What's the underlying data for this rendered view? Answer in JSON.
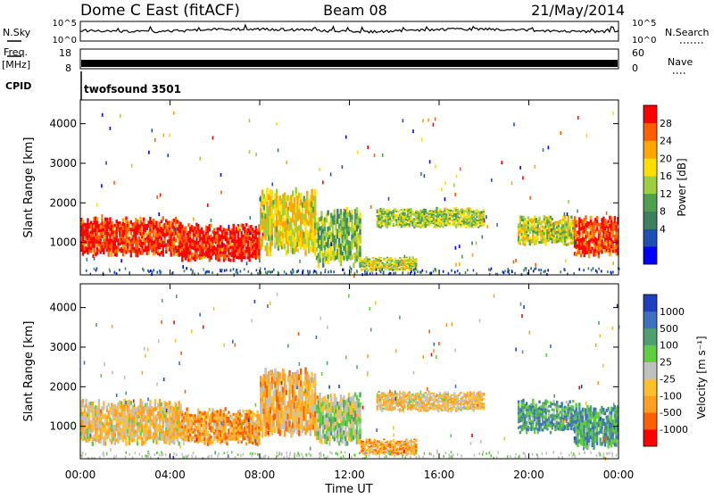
{
  "header": {
    "station": "Dome C East (fitACF)",
    "beam": "Beam 08",
    "date": "21/May/2014"
  },
  "strips": {
    "nsky_label": "N.Sky",
    "nsky_ticks": [
      "10^5",
      "10^0"
    ],
    "nsearch_label": "N.Search",
    "nsearch_ticks": [
      "10^5",
      "10^0"
    ],
    "freq_label_top": "Freq.",
    "freq_label_bottom": "[MHz]",
    "freq_ticks": [
      "18",
      "8"
    ],
    "nave_label": "Nave",
    "nave_ticks": [
      "60",
      "0"
    ],
    "cpid_label": "CPID",
    "cpid_text": "twofsound 3501"
  },
  "colors": {
    "frame": "#000000",
    "noise_trace": "#000000"
  },
  "chart_data": [
    {
      "type": "heatmap",
      "panel": "power",
      "xlabel": "Time UT",
      "ylabel": "Slant Range [km]",
      "xlim": [
        "00:00",
        "24:00"
      ],
      "x_ticks": [
        "00:00",
        "04:00",
        "08:00",
        "12:00",
        "16:00",
        "20:00",
        "00:00"
      ],
      "ylim": [
        180,
        4600
      ],
      "y_ticks": [
        1000,
        2000,
        3000,
        4000
      ],
      "colorbar": {
        "label": "Power [dB]",
        "ticks": [
          "28",
          "24",
          "20",
          "16",
          "12",
          "8",
          "4"
        ],
        "bins": [
          "#0000ff",
          "#1f4fb0",
          "#3f7f5f",
          "#4f9f4f",
          "#9fcf3f",
          "#ffdf00",
          "#ffa500",
          "#ff5f00",
          "#ff0000"
        ]
      },
      "regions": [
        {
          "t0": 0.0,
          "t1": 4.5,
          "r0": 620,
          "r1": 1660,
          "level": 0.92
        },
        {
          "t0": 4.5,
          "t1": 8.0,
          "r0": 500,
          "r1": 1500,
          "level": 0.94
        },
        {
          "t0": 8.0,
          "t1": 10.5,
          "r0": 650,
          "r1": 2400,
          "level": 0.6
        },
        {
          "t0": 10.5,
          "t1": 12.5,
          "r0": 350,
          "r1": 1900,
          "level": 0.45
        },
        {
          "t0": 12.5,
          "t1": 15.0,
          "r0": 250,
          "r1": 650,
          "level": 0.55
        },
        {
          "t0": 13.2,
          "t1": 18.0,
          "r0": 1350,
          "r1": 1900,
          "level": 0.5
        },
        {
          "t0": 19.5,
          "t1": 22.0,
          "r0": 900,
          "r1": 1700,
          "level": 0.55
        },
        {
          "t0": 22.0,
          "t1": 24.0,
          "r0": 600,
          "r1": 1700,
          "level": 0.9
        }
      ]
    },
    {
      "type": "heatmap",
      "panel": "velocity",
      "xlabel": "Time UT",
      "ylabel": "Slant Range [km]",
      "xlim": [
        "00:00",
        "24:00"
      ],
      "x_ticks": [
        "00:00",
        "04:00",
        "08:00",
        "12:00",
        "16:00",
        "20:00",
        "00:00"
      ],
      "ylim": [
        180,
        4600
      ],
      "y_ticks": [
        1000,
        2000,
        3000,
        4000
      ],
      "colorbar": {
        "label": "Velocity [m s⁻¹]",
        "ticks": [
          "1000",
          "500",
          "100",
          "25",
          "-25",
          "-100",
          "-500",
          "-1000"
        ],
        "bins": [
          "#ff0000",
          "#ff5f00",
          "#ff9f1f",
          "#ffbf2f",
          "#c0c0c0",
          "#5fcf3f",
          "#4f9f6f",
          "#3f6fbf",
          "#1f3fbf"
        ]
      },
      "regions": [
        {
          "t0": 0.0,
          "t1": 4.5,
          "r0": 500,
          "r1": 1700,
          "level": 0.4
        },
        {
          "t0": 4.5,
          "t1": 8.0,
          "r0": 500,
          "r1": 1500,
          "level": 0.3
        },
        {
          "t0": 8.0,
          "t1": 10.5,
          "r0": 700,
          "r1": 2500,
          "level": 0.35
        },
        {
          "t0": 10.5,
          "t1": 12.5,
          "r0": 500,
          "r1": 1900,
          "level": 0.55
        },
        {
          "t0": 12.5,
          "t1": 15.0,
          "r0": 250,
          "r1": 700,
          "level": 0.3
        },
        {
          "t0": 13.2,
          "t1": 18.0,
          "r0": 1350,
          "r1": 1900,
          "level": 0.4
        },
        {
          "t0": 19.5,
          "t1": 22.0,
          "r0": 800,
          "r1": 1700,
          "level": 0.7
        },
        {
          "t0": 22.0,
          "t1": 24.0,
          "r0": 400,
          "r1": 1600,
          "level": 0.72
        }
      ]
    }
  ]
}
